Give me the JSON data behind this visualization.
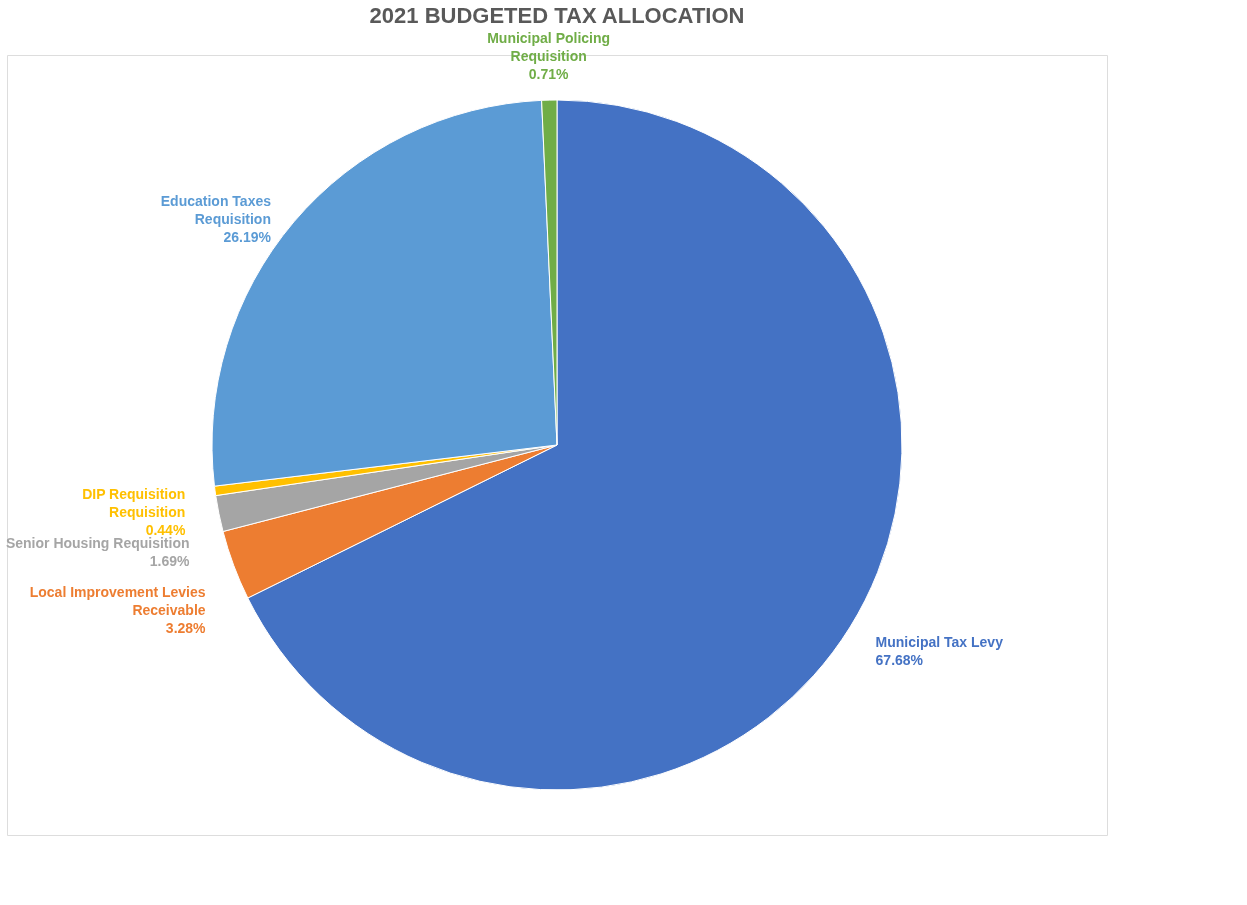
{
  "chart_data": {
    "type": "pie",
    "title": "2021 BUDGETED TAX ALLOCATION",
    "categories": [
      "Municipal Tax Levy",
      "Local Improvement Levies Receivable",
      "Senior Housing Requisition",
      "DIP Requisition Requisition",
      "Education Taxes Requisition",
      "Municipal Policing Requisition"
    ],
    "values": [
      67.68,
      3.28,
      1.69,
      0.44,
      26.19,
      0.71
    ],
    "colors": [
      "#4472c4",
      "#ed7d31",
      "#a5a5a5",
      "#ffc000",
      "#5b9bd5",
      "#70ad47"
    ],
    "value_labels": [
      "67.68%",
      "3.28%",
      "1.69%",
      "0.44%",
      "26.19%",
      "0.71%"
    ],
    "legend": false
  }
}
